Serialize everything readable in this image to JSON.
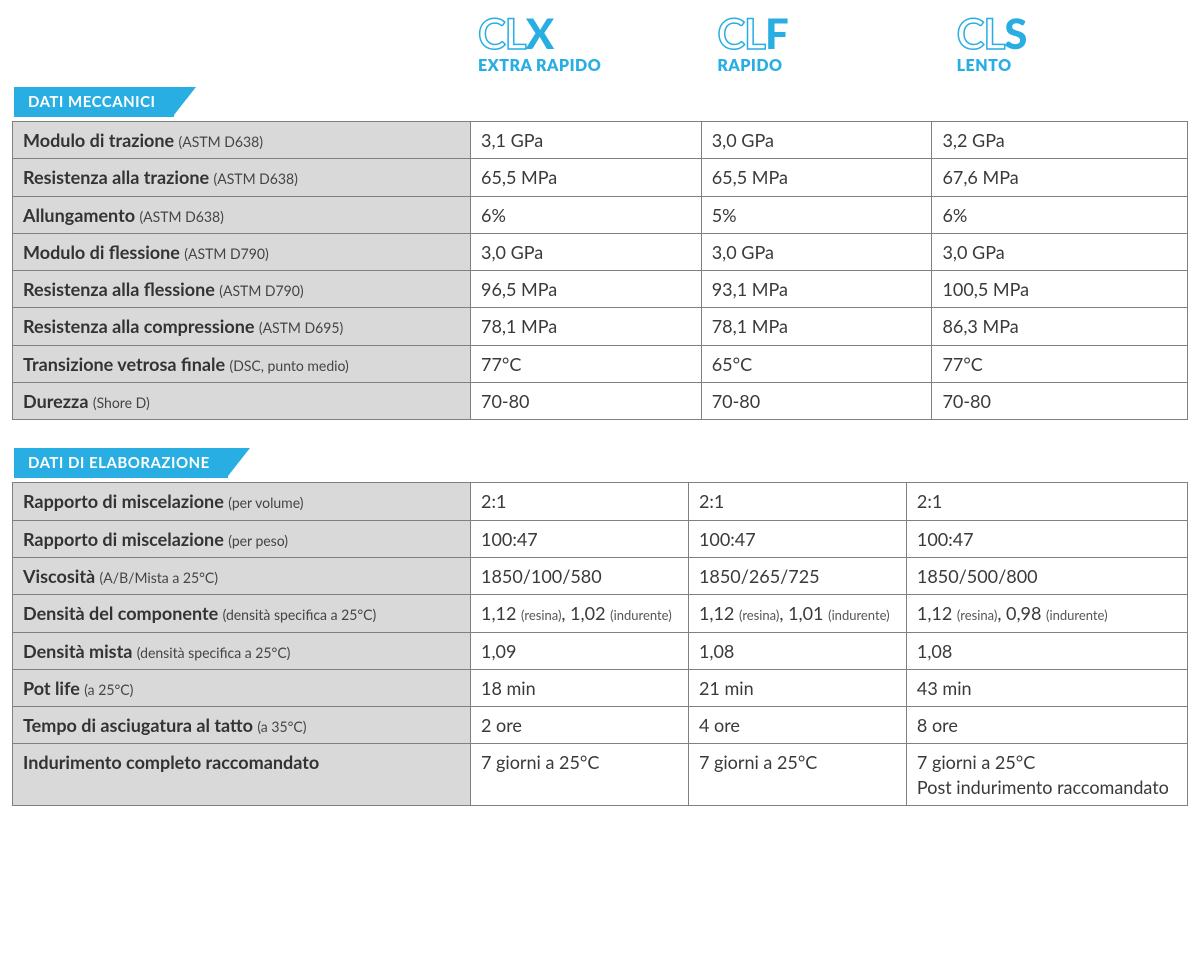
{
  "products": [
    {
      "prefix": "CL",
      "letter": "X",
      "subtitle": "EXTRA RAPIDO"
    },
    {
      "prefix": "CL",
      "letter": "F",
      "subtitle": "RAPIDO"
    },
    {
      "prefix": "CL",
      "letter": "S",
      "subtitle": "LENTO"
    }
  ],
  "sections": [
    {
      "title": "DATI MECCANICI",
      "rows": [
        {
          "label": "Modulo di trazione",
          "sub": "(ASTM D638)",
          "v": [
            "3,1 GPa",
            "3,0 GPa",
            "3,2 GPa"
          ]
        },
        {
          "label": "Resistenza alla trazione",
          "sub": "(ASTM D638)",
          "v": [
            "65,5 MPa",
            "65,5 MPa",
            "67,6 MPa"
          ]
        },
        {
          "label": "Allungamento",
          "sub": "(ASTM D638)",
          "v": [
            "6%",
            "5%",
            "6%"
          ]
        },
        {
          "label": "Modulo di flessione",
          "sub": "(ASTM D790)",
          "v": [
            "3,0 GPa",
            "3,0 GPa",
            "3,0 GPa"
          ]
        },
        {
          "label": "Resistenza alla flessione",
          "sub": "(ASTM D790)",
          "v": [
            "96,5 MPa",
            "93,1 MPa",
            "100,5 MPa"
          ]
        },
        {
          "label": "Resistenza alla compressione",
          "sub": "(ASTM D695)",
          "v": [
            "78,1 MPa",
            "78,1 MPa",
            "86,3 MPa"
          ]
        },
        {
          "label": "Transizione vetrosa finale",
          "sub": "(DSC, punto medio)",
          "v": [
            "77°C",
            "65°C",
            "77°C"
          ]
        },
        {
          "label": "Durezza",
          "sub": "(Shore D)",
          "v": [
            "70-80",
            "70-80",
            "70-80"
          ]
        }
      ]
    },
    {
      "title": "DATI DI ELABORAZIONE",
      "rows": [
        {
          "label": "Rapporto di miscelazione",
          "sub": "(per volume)",
          "v": [
            "2:1",
            "2:1",
            "2:1"
          ]
        },
        {
          "label": "Rapporto di miscelazione",
          "sub": "(per peso)",
          "v": [
            "100:47",
            "100:47",
            "100:47"
          ]
        },
        {
          "label": "Viscosità",
          "sub": "(A/B/Mista a 25°C)",
          "v": [
            "1850/100/580",
            "1850/265/725",
            "1850/500/800"
          ]
        },
        {
          "label": "Densità del componente",
          "sub": "(densità specifica a 25°C)",
          "vrich": [
            [
              {
                "t": "1,12 "
              },
              {
                "t": "(resina)",
                "s": true
              },
              {
                "t": ", 1,02 "
              },
              {
                "t": "(indurente)",
                "s": true
              }
            ],
            [
              {
                "t": "1,12 "
              },
              {
                "t": "(resina)",
                "s": true
              },
              {
                "t": ", 1,01 "
              },
              {
                "t": "(indurente)",
                "s": true
              }
            ],
            [
              {
                "t": "1,12 "
              },
              {
                "t": "(resina)",
                "s": true
              },
              {
                "t": ", 0,98 "
              },
              {
                "t": "(indurente)",
                "s": true
              }
            ]
          ]
        },
        {
          "label": "Densità mista",
          "sub": "(densità specifica a 25°C)",
          "v": [
            "1,09",
            "1,08",
            "1,08"
          ]
        },
        {
          "label": "Pot life",
          "sub": "(a 25°C)",
          "v": [
            "18 min",
            "21 min",
            "43 min"
          ]
        },
        {
          "label": "Tempo di asciugatura al tatto",
          "sub": "(a 35°C)",
          "v": [
            "2 ore",
            "4 ore",
            "8 ore"
          ]
        },
        {
          "label": "Indurimento completo raccomandato",
          "sub": "",
          "v": [
            "7 giorni a 25°C",
            "7 giorni a 25°C",
            "7 giorni a 25°C"
          ],
          "extra": [
            "",
            "",
            "Post indurimento raccomandato"
          ]
        }
      ]
    }
  ],
  "colors": {
    "accent": "#29aee3",
    "label_bg": "#d9d9d9",
    "border": "#808080",
    "text": "#333333"
  }
}
